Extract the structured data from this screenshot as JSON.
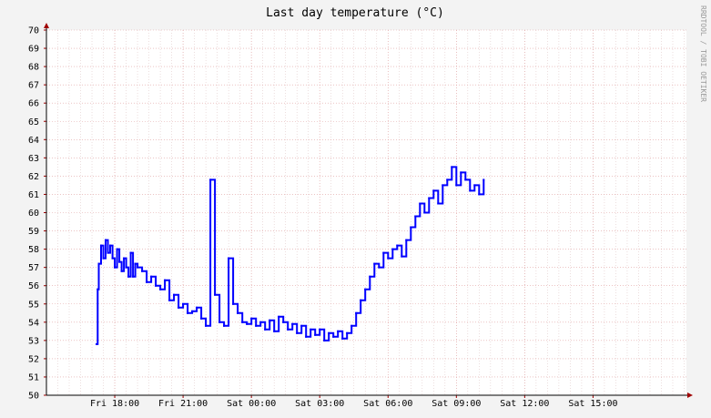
{
  "chart_data": {
    "type": "line",
    "title": "Last day temperature (°C)",
    "watermark": "RRDTOOL / TOBI OETIKER",
    "ylim": [
      50,
      70
    ],
    "y_ticks": [
      50,
      51,
      52,
      53,
      54,
      55,
      56,
      57,
      58,
      59,
      60,
      61,
      62,
      63,
      64,
      65,
      66,
      67,
      68,
      69,
      70
    ],
    "x_range_hours": [
      -0.8,
      16.2
    ],
    "x_ticks": [
      {
        "label": "Fri 18:00",
        "hours": 0
      },
      {
        "label": "Fri 21:00",
        "hours": 3
      },
      {
        "label": "Sat 00:00",
        "hours": 6
      },
      {
        "label": "Sat 03:00",
        "hours": 9
      },
      {
        "label": "Sat 06:00",
        "hours": 12
      },
      {
        "label": "Sat 09:00",
        "hours": 15
      },
      {
        "label": "Sat 12:00",
        "hours": 18
      },
      {
        "label": "Sat 15:00",
        "hours": 21
      }
    ],
    "grid": true,
    "line_color": "#0000ff",
    "series": [
      {
        "x": [
          -0.8,
          -0.75,
          -0.7,
          -0.6,
          -0.5,
          -0.4,
          -0.3,
          -0.2,
          -0.1,
          0,
          0.1,
          0.2,
          0.3,
          0.4,
          0.5,
          0.6,
          0.7,
          0.8,
          0.9,
          1.0,
          1.2,
          1.4,
          1.6,
          1.8,
          2.0,
          2.2,
          2.4,
          2.6,
          2.8,
          3.0,
          3.2,
          3.4,
          3.6,
          3.8,
          4.0,
          4.2,
          4.4,
          4.6,
          4.8,
          5.0,
          5.2,
          5.4,
          5.6,
          5.8,
          6.0,
          6.2,
          6.4,
          6.6,
          6.8,
          7.0,
          7.2,
          7.4,
          7.6,
          7.8,
          8.0,
          8.2,
          8.4,
          8.6,
          8.8,
          9.0,
          9.2,
          9.4,
          9.6,
          9.8,
          10.0,
          10.2,
          10.4,
          10.6,
          10.8,
          11.0,
          11.2,
          11.4,
          11.6,
          11.8,
          12.0,
          12.2,
          12.4,
          12.6,
          12.8,
          13.0,
          13.2,
          13.4,
          13.6,
          13.8,
          14.0,
          14.2,
          14.4,
          14.6,
          14.8,
          15.0,
          15.2,
          15.4,
          15.6,
          15.8,
          16.0,
          16.2
        ],
        "values": [
          52.8,
          55.8,
          57.2,
          58.2,
          57.5,
          58.5,
          57.8,
          58.2,
          57.5,
          57.0,
          58.0,
          57.3,
          56.8,
          57.5,
          57.0,
          56.5,
          57.8,
          56.5,
          57.2,
          57.0,
          56.8,
          56.2,
          56.5,
          56.0,
          55.8,
          56.3,
          55.2,
          55.5,
          54.8,
          55.0,
          54.5,
          54.6,
          54.8,
          54.2,
          53.8,
          61.8,
          55.5,
          54.0,
          53.8,
          57.5,
          55.0,
          54.5,
          54.0,
          53.9,
          54.2,
          53.8,
          54.0,
          53.6,
          54.1,
          53.5,
          54.3,
          54.0,
          53.6,
          53.9,
          53.4,
          53.8,
          53.2,
          53.6,
          53.3,
          53.6,
          53.0,
          53.4,
          53.2,
          53.5,
          53.1,
          53.4,
          53.8,
          54.5,
          55.2,
          55.8,
          56.5,
          57.2,
          57.0,
          57.8,
          57.5,
          58.0,
          58.2,
          57.6,
          58.5,
          59.2,
          59.8,
          60.5,
          60.0,
          60.8,
          61.2,
          60.5,
          61.5,
          61.8,
          62.5,
          61.5,
          62.2,
          61.8,
          61.2,
          61.5,
          61.0,
          61.8
        ]
      }
    ]
  }
}
